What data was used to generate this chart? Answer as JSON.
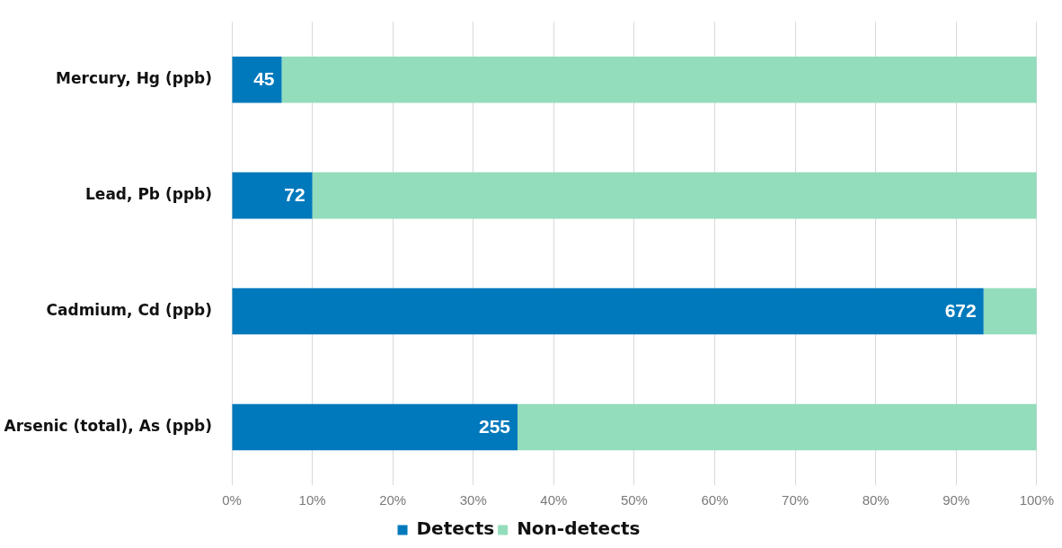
{
  "chart_data": {
    "type": "bar",
    "orientation": "horizontal",
    "stacked": true,
    "categories": [
      "Mercury, Hg (ppb)",
      "Lead, Pb (ppb)",
      "Cadmium, Cd (ppb)",
      "Arsenic (total), As (ppb)"
    ],
    "series": [
      {
        "name": "Detects",
        "color": "#0079bc",
        "values": [
          6.2,
          10,
          93.4,
          35.5
        ]
      },
      {
        "name": "Non-detects",
        "color": "#93dcbc",
        "values": [
          93.8,
          90,
          6.6,
          64.5
        ]
      }
    ],
    "annotations": [
      {
        "text": "45",
        "x": 6.2,
        "y": "Mercury, Hg (ppb)"
      },
      {
        "text": "72",
        "x": 10,
        "y": "Lead, Pb (ppb)"
      },
      {
        "text": "672",
        "x": 93.4,
        "y": "Cadmium, Cd (ppb)"
      },
      {
        "text": "255",
        "x": 35.5,
        "y": "Arsenic (total), As (ppb)"
      }
    ],
    "xlim": [
      0,
      100
    ],
    "xticks": [
      {
        "value": 0,
        "label": "0%"
      },
      {
        "value": 10,
        "label": "10%"
      },
      {
        "value": 20,
        "label": "20%"
      },
      {
        "value": 30,
        "label": "30%"
      },
      {
        "value": 40,
        "label": "40%"
      },
      {
        "value": 50,
        "label": "50%"
      },
      {
        "value": 60,
        "label": "60%"
      },
      {
        "value": 70,
        "label": "70%"
      },
      {
        "value": 80,
        "label": "80%"
      },
      {
        "value": 90,
        "label": "90%"
      },
      {
        "value": 100,
        "label": "100%"
      }
    ],
    "grid": "x",
    "legend": "bottom"
  }
}
